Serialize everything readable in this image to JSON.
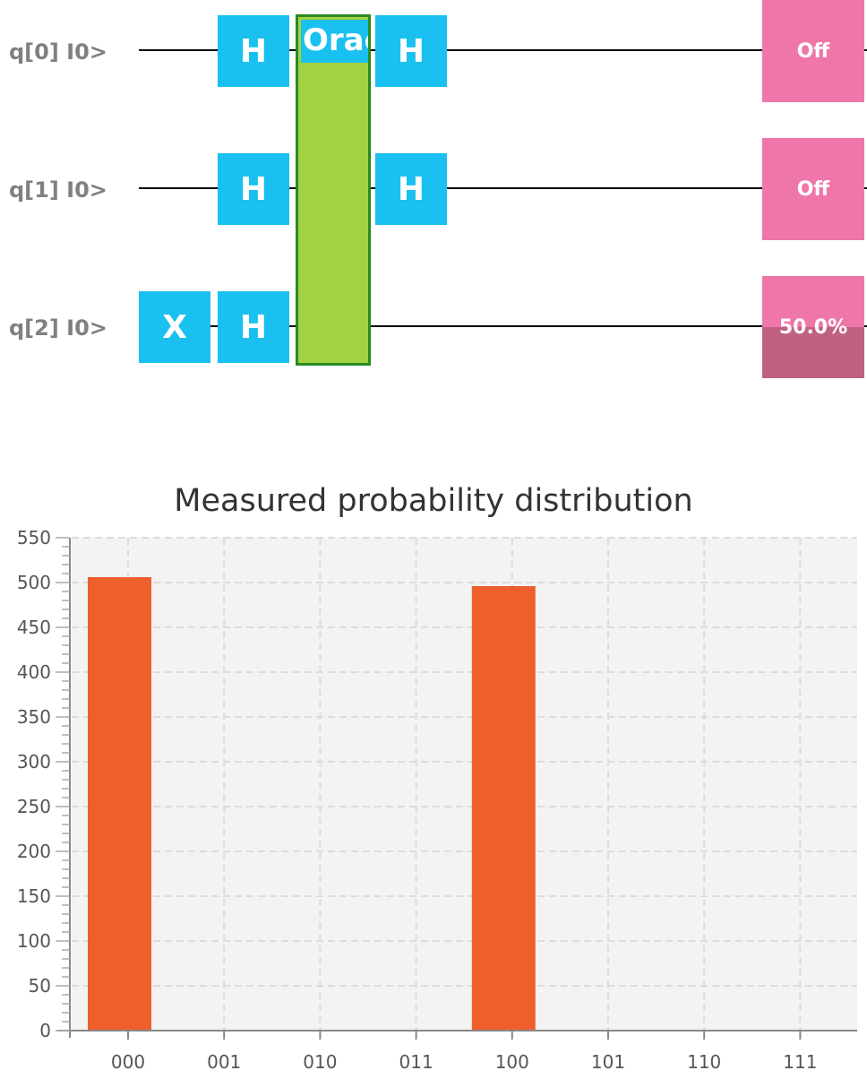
{
  "circuit": {
    "qubits": [
      {
        "label": "q[0] I0>",
        "measure": "Off",
        "probability": 0
      },
      {
        "label": "q[1] I0>",
        "measure": "Off",
        "probability": 0
      },
      {
        "label": "q[2] I0>",
        "measure": "50.0%",
        "probability": 0.5
      }
    ],
    "gates": {
      "x_label": "X",
      "h_label": "H",
      "oracle_label": "Oracle"
    },
    "colors": {
      "gate": "#1ac0ef",
      "oracle": "#a2d144",
      "oracle_border": "#2b8a1f",
      "measure": "#ee76a9",
      "measure_fill": "#c0617f"
    }
  },
  "chart_data": {
    "type": "bar",
    "title": "Measured probability distribution",
    "categories": [
      "000",
      "001",
      "010",
      "011",
      "100",
      "101",
      "110",
      "111"
    ],
    "values": [
      506,
      0,
      0,
      0,
      496,
      0,
      0,
      0
    ],
    "ylim": [
      0,
      550
    ],
    "yticks": [
      0,
      50,
      100,
      150,
      200,
      250,
      300,
      350,
      400,
      450,
      500,
      550
    ],
    "grid": true,
    "bar_color": "#ee5f2e",
    "xlabel": "",
    "ylabel": ""
  }
}
